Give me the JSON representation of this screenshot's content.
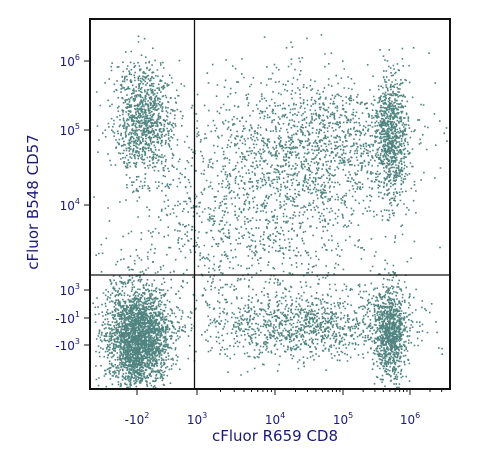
{
  "chart_data": {
    "type": "scatter",
    "title": "",
    "xlabel": "cFluor R659 CD8",
    "ylabel": "cFluor B548 CD57",
    "x_scale": "logicle",
    "y_scale": "logicle",
    "x_ticks": [
      {
        "label": "-10",
        "exp": "2",
        "value": -100
      },
      {
        "label": "10",
        "exp": "3",
        "value": 1000
      },
      {
        "label": "10",
        "exp": "4",
        "value": 10000
      },
      {
        "label": "10",
        "exp": "5",
        "value": 100000
      },
      {
        "label": "10",
        "exp": "6",
        "value": 1000000
      }
    ],
    "y_ticks": [
      {
        "label": "-10",
        "exp": "3",
        "value": -1000
      },
      {
        "label": "-10",
        "exp": "1",
        "value": -10
      },
      {
        "label": "10",
        "exp": "3",
        "value": 1000
      },
      {
        "label": "10",
        "exp": "4",
        "value": 10000
      },
      {
        "label": "10",
        "exp": "5",
        "value": 100000
      },
      {
        "label": "10",
        "exp": "6",
        "value": 1000000
      }
    ],
    "quadrant_gate": {
      "x": 750,
      "y": 1500
    },
    "point_color": "#4f8480",
    "populations": [
      {
        "x": -100,
        "y": -300,
        "share": 0.3
      },
      {
        "x": 500000,
        "y": -100,
        "share": 0.1
      },
      {
        "x": 30000,
        "y": -50,
        "share": 0.12
      },
      {
        "x": -50,
        "y": 150000,
        "share": 0.11
      },
      {
        "x": 500000,
        "y": 80000,
        "share": 0.09
      },
      {
        "x": 40000,
        "y": 70000,
        "share": 0.14
      },
      {
        "x": 5000,
        "y": 8000,
        "share": 0.14
      }
    ]
  }
}
